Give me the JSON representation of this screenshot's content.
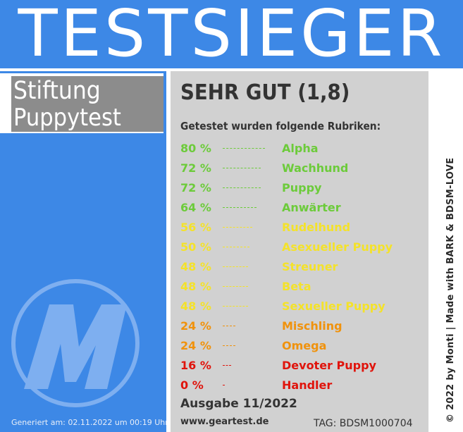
{
  "header": {
    "title": "TESTSIEGER"
  },
  "brand": {
    "line1": "Stiftung",
    "line2": "Puppytest"
  },
  "result": {
    "rating": "SEHR GUT (1,8)",
    "subheading": "Getestet wurden folgende Rubriken:",
    "categories": [
      {
        "percent": "80 %",
        "value": 80,
        "label": "Alpha",
        "color": "#6ccb3a"
      },
      {
        "percent": "72 %",
        "value": 72,
        "label": "Wachhund",
        "color": "#6ccb3a"
      },
      {
        "percent": "72 %",
        "value": 72,
        "label": "Puppy",
        "color": "#6ccb3a"
      },
      {
        "percent": "64 %",
        "value": 64,
        "label": "Anwärter",
        "color": "#6ccb3a"
      },
      {
        "percent": "56 %",
        "value": 56,
        "label": "Rudelhund",
        "color": "#f4e22a"
      },
      {
        "percent": "50 %",
        "value": 50,
        "label": "Asexueller Puppy",
        "color": "#f4e22a"
      },
      {
        "percent": "48 %",
        "value": 48,
        "label": "Streuner",
        "color": "#f4e22a"
      },
      {
        "percent": "48 %",
        "value": 48,
        "label": "Beta",
        "color": "#f4e22a"
      },
      {
        "percent": "48 %",
        "value": 48,
        "label": "Sexueller Puppy",
        "color": "#f4e22a"
      },
      {
        "percent": "24 %",
        "value": 24,
        "label": "Mischling",
        "color": "#f0920c"
      },
      {
        "percent": "24 %",
        "value": 24,
        "label": "Omega",
        "color": "#f0920c"
      },
      {
        "percent": "16 %",
        "value": 16,
        "label": "Devoter Puppy",
        "color": "#e0140c"
      },
      {
        "percent": "0 %",
        "value": 0,
        "label": "Handler",
        "color": "#e0140c"
      }
    ]
  },
  "footer": {
    "issue": "Ausgabe 11/2022",
    "website": "www.geartest.de",
    "tag": "TAG: BDSM1000704",
    "generated": "Generiert am: 02.11.2022 um 00:19 Uhr",
    "copyright": "© 2022 by Monti | Made with BARK & BDSM-LOVE"
  },
  "colors": {
    "header_blue": "#3d88e6",
    "card_gray": "#d1d1d1",
    "brand_gray": "#8c8c8c",
    "green": "#6ccb3a",
    "yellow": "#f4e22a",
    "orange": "#f0920c",
    "red": "#e0140c"
  },
  "icons": {
    "logo": "monti-m-logo"
  }
}
